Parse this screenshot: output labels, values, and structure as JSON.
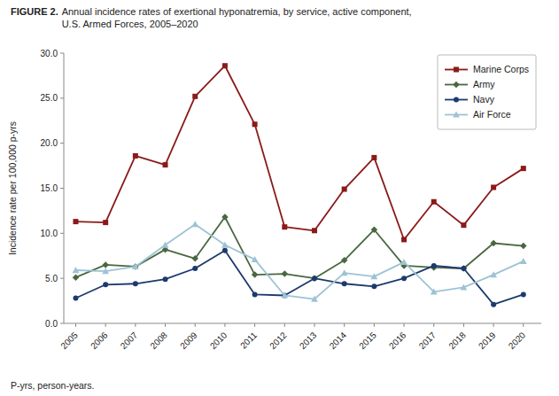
{
  "chart_data": {
    "type": "line",
    "title": "FIGURE 2.",
    "subtitle": "Annual incidence rates of exertional hyponatremia, by service, active component,\nU.S. Armed Forces, 2005–2020",
    "y_label": "Incidence rate per 100,000 p-yrs",
    "annotations": [
      "P-yrs, person-years."
    ],
    "x": [
      2005,
      2006,
      2007,
      2008,
      2009,
      2010,
      2011,
      2012,
      2013,
      2014,
      2015,
      2016,
      2017,
      2018,
      2019,
      2020
    ],
    "xlim": [
      2004.6,
      2020.6
    ],
    "xticks": [
      2005,
      2006,
      2007,
      2008,
      2009,
      2010,
      2011,
      2012,
      2013,
      2014,
      2015,
      2016,
      2017,
      2018,
      2019,
      2020
    ],
    "ylim": [
      0.0,
      30.0
    ],
    "yticks": [
      {
        "value": 0,
        "label": "0.0"
      },
      {
        "value": 5,
        "label": "5.0"
      },
      {
        "value": 10,
        "label": "10.0"
      },
      {
        "value": 15,
        "label": "15.0"
      },
      {
        "value": 20,
        "label": "20.0"
      },
      {
        "value": 25,
        "label": "25.0"
      },
      {
        "value": 30,
        "label": "30.0"
      }
    ],
    "grid": false,
    "legend": "upper right",
    "series": [
      {
        "name": "Marine Corps",
        "color": "#8B1A1A",
        "marker": "square",
        "values": [
          11.3,
          11.2,
          18.6,
          17.6,
          25.2,
          28.6,
          22.1,
          10.7,
          10.3,
          14.9,
          18.4,
          9.3,
          13.5,
          10.9,
          15.1,
          17.2
        ]
      },
      {
        "name": "Army",
        "color": "#4A6741",
        "marker": "diamond",
        "values": [
          5.1,
          6.5,
          6.3,
          8.2,
          7.2,
          11.8,
          5.4,
          5.5,
          5.0,
          7.0,
          10.4,
          6.4,
          6.2,
          6.1,
          8.9,
          8.6
        ]
      },
      {
        "name": "Navy",
        "color": "#1C3A6E",
        "marker": "circle",
        "values": [
          2.8,
          4.3,
          4.4,
          4.9,
          6.1,
          8.1,
          3.2,
          3.1,
          5.0,
          4.4,
          4.1,
          5.0,
          6.4,
          6.1,
          2.1,
          3.2
        ]
      },
      {
        "name": "Air Force",
        "color": "#9DC3D4",
        "marker": "triangle",
        "values": [
          5.9,
          5.8,
          6.3,
          8.7,
          11.0,
          8.7,
          7.1,
          3.1,
          2.7,
          5.6,
          5.2,
          6.8,
          3.5,
          4.0,
          5.4,
          6.9
        ]
      }
    ]
  }
}
